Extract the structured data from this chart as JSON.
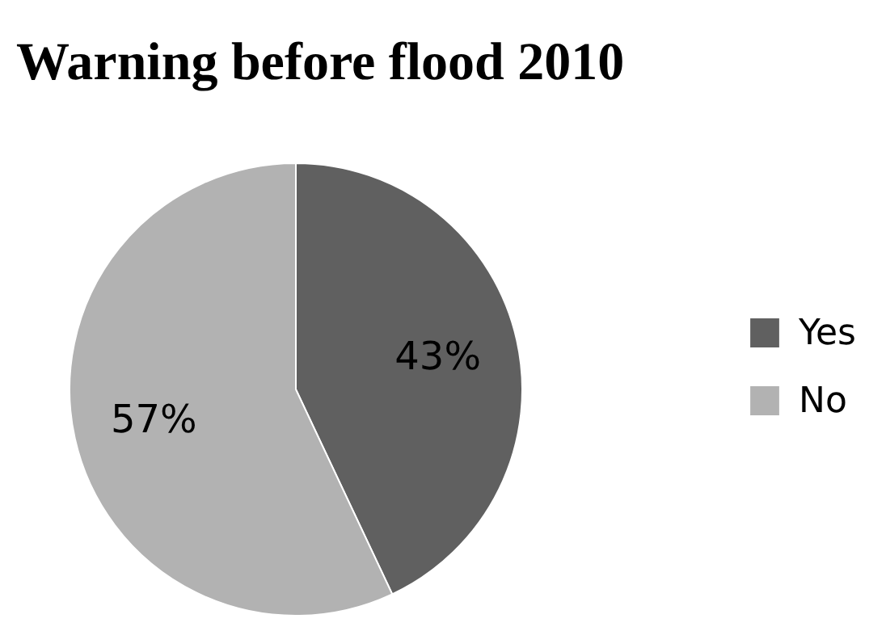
{
  "chart_data": {
    "type": "pie",
    "title": "Warning before flood 2010",
    "categories": [
      "Yes",
      "No"
    ],
    "values": [
      43,
      57
    ],
    "colors": [
      "#606060",
      "#b2b2b2"
    ],
    "value_labels": [
      "43%",
      "57%"
    ],
    "legend": "right"
  }
}
